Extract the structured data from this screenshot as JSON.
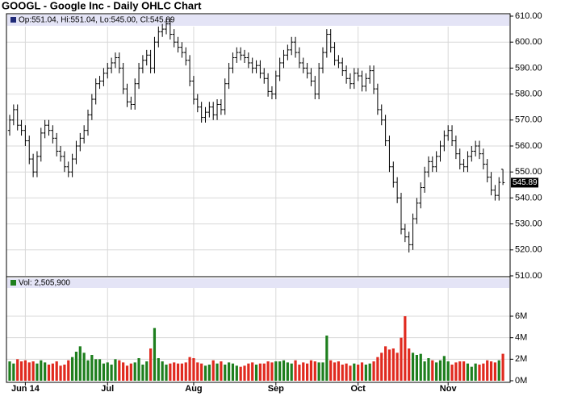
{
  "chart_data": {
    "type": "ohlc",
    "title": "GOOGL - Google Inc - Daily OHLC Chart",
    "legend_text": "Op:551.04, Hi:551.04, Lo:545.00, Cl:545.89",
    "volume_legend": "Vol: 2,505,900",
    "categories": [
      null,
      null,
      null,
      null,
      "Jun 14",
      null,
      null,
      null,
      null,
      null,
      null,
      null,
      null,
      null,
      null,
      null,
      null,
      null,
      null,
      null,
      null,
      null,
      null,
      null,
      null,
      "Jul",
      null,
      null,
      null,
      null,
      null,
      null,
      null,
      null,
      null,
      null,
      null,
      null,
      null,
      null,
      null,
      null,
      null,
      null,
      null,
      null,
      null,
      "Aug",
      null,
      null,
      null,
      null,
      null,
      null,
      null,
      null,
      null,
      null,
      null,
      null,
      null,
      null,
      null,
      null,
      null,
      null,
      null,
      null,
      "Sep",
      null,
      null,
      null,
      null,
      null,
      null,
      null,
      null,
      null,
      null,
      null,
      null,
      null,
      null,
      null,
      null,
      null,
      null,
      null,
      null,
      "Oct",
      null,
      null,
      null,
      null,
      null,
      null,
      null,
      null,
      null,
      null,
      null,
      null,
      null,
      null,
      null,
      null,
      null,
      null,
      null,
      null,
      null,
      null,
      "Nov",
      null,
      null,
      null,
      null,
      null,
      null,
      null,
      null,
      null,
      null,
      null,
      null,
      null,
      null
    ],
    "open": [
      566,
      570,
      574,
      568,
      566,
      562,
      555,
      550,
      556,
      565,
      568,
      566,
      563,
      558,
      556,
      552,
      550,
      555,
      560,
      563,
      566,
      572,
      578,
      584,
      585,
      588,
      590,
      592,
      594,
      590,
      582,
      577,
      576,
      584,
      590,
      593,
      595,
      590,
      600,
      604,
      605,
      607,
      603,
      600,
      598,
      596,
      593,
      585,
      578,
      575,
      571,
      573,
      575,
      572,
      576,
      574,
      584,
      590,
      594,
      596,
      595,
      594,
      592,
      590,
      591,
      588,
      586,
      581,
      580,
      587,
      592,
      595,
      597,
      600,
      596,
      592,
      590,
      588,
      585,
      580,
      590,
      596,
      603,
      598,
      593,
      592,
      589,
      586,
      584,
      588,
      587,
      583,
      586,
      589,
      582,
      574,
      570,
      562,
      552,
      546,
      540,
      528,
      525,
      522,
      532,
      538,
      544,
      550,
      554,
      552,
      556,
      560,
      564,
      566,
      562,
      557,
      553,
      552,
      556,
      558,
      560,
      557,
      553,
      548,
      543,
      541,
      551.04
    ],
    "high": [
      572,
      576,
      576,
      570,
      568,
      564,
      557,
      558,
      567,
      570,
      570,
      568,
      565,
      560,
      558,
      554,
      557,
      562,
      565,
      568,
      574,
      580,
      586,
      587,
      590,
      592,
      594,
      596,
      596,
      592,
      584,
      579,
      586,
      592,
      595,
      597,
      597,
      602,
      606,
      607,
      609,
      609,
      605,
      602,
      600,
      598,
      595,
      587,
      580,
      577,
      575,
      577,
      577,
      578,
      578,
      586,
      592,
      596,
      598,
      598,
      597,
      596,
      594,
      593,
      593,
      590,
      588,
      583,
      589,
      594,
      597,
      599,
      602,
      602,
      598,
      594,
      592,
      590,
      587,
      592,
      598,
      605,
      605,
      600,
      595,
      594,
      591,
      588,
      590,
      590,
      589,
      588,
      591,
      591,
      584,
      576,
      572,
      564,
      554,
      548,
      542,
      530,
      527,
      534,
      540,
      546,
      552,
      556,
      556,
      558,
      562,
      566,
      568,
      568,
      564,
      559,
      555,
      558,
      560,
      562,
      562,
      559,
      555,
      550,
      545,
      548,
      551.04
    ],
    "low": [
      564,
      568,
      566,
      564,
      560,
      553,
      548,
      548,
      554,
      563,
      564,
      561,
      556,
      554,
      550,
      548,
      548,
      553,
      558,
      561,
      564,
      570,
      576,
      582,
      583,
      586,
      588,
      590,
      588,
      580,
      575,
      574,
      574,
      582,
      588,
      591,
      588,
      588,
      598,
      602,
      603,
      601,
      598,
      596,
      594,
      591,
      583,
      576,
      573,
      569,
      569,
      571,
      570,
      570,
      572,
      572,
      582,
      588,
      592,
      593,
      592,
      590,
      588,
      588,
      586,
      584,
      579,
      578,
      578,
      585,
      590,
      593,
      595,
      594,
      590,
      588,
      586,
      583,
      578,
      578,
      588,
      594,
      596,
      591,
      590,
      587,
      584,
      582,
      582,
      585,
      581,
      581,
      584,
      580,
      572,
      568,
      560,
      550,
      544,
      538,
      526,
      523,
      519,
      520,
      530,
      536,
      542,
      548,
      550,
      550,
      554,
      558,
      562,
      560,
      555,
      551,
      550,
      550,
      554,
      556,
      555,
      551,
      546,
      541,
      539,
      539,
      545
    ],
    "close": [
      570,
      574,
      568,
      566,
      562,
      555,
      550,
      556,
      565,
      568,
      566,
      563,
      558,
      556,
      552,
      550,
      555,
      560,
      563,
      566,
      572,
      578,
      584,
      585,
      588,
      590,
      592,
      594,
      590,
      582,
      577,
      576,
      584,
      590,
      593,
      595,
      590,
      600,
      604,
      605,
      607,
      603,
      600,
      598,
      596,
      593,
      585,
      578,
      575,
      571,
      573,
      575,
      572,
      576,
      574,
      584,
      590,
      594,
      596,
      595,
      594,
      592,
      590,
      591,
      588,
      586,
      581,
      580,
      587,
      592,
      595,
      597,
      600,
      596,
      592,
      590,
      588,
      585,
      580,
      590,
      596,
      603,
      598,
      593,
      592,
      589,
      586,
      584,
      588,
      587,
      583,
      586,
      589,
      582,
      574,
      570,
      562,
      552,
      546,
      540,
      528,
      525,
      522,
      532,
      538,
      544,
      550,
      554,
      552,
      556,
      560,
      564,
      566,
      562,
      557,
      553,
      552,
      556,
      558,
      560,
      557,
      553,
      548,
      543,
      541,
      546,
      545.89
    ],
    "volume": [
      1800000,
      1600000,
      2000000,
      1800000,
      1900000,
      1700000,
      1800000,
      1600000,
      1900000,
      1700000,
      1500000,
      1600000,
      1800000,
      1400000,
      1500000,
      1900000,
      2200000,
      2700000,
      3200000,
      2600000,
      1900000,
      2400000,
      2000000,
      2000000,
      1600000,
      1700000,
      1500000,
      2000000,
      1900000,
      1700000,
      1400000,
      1600000,
      1700000,
      2100000,
      1500000,
      1800000,
      3000000,
      4900000,
      2100000,
      1800000,
      1500000,
      1600000,
      1700000,
      1600000,
      1600000,
      1700000,
      2200000,
      2100000,
      1700000,
      1600000,
      1400000,
      1500000,
      1900000,
      1600000,
      1800000,
      1500000,
      1700000,
      1600000,
      1400000,
      1300000,
      1400000,
      1600000,
      1700000,
      1500000,
      1600000,
      1600000,
      1800000,
      1700000,
      1800000,
      1800000,
      1900000,
      1700000,
      1600000,
      1900000,
      1500000,
      1700000,
      1600000,
      1900000,
      1800000,
      1700000,
      1700000,
      4200000,
      1900000,
      1700000,
      1800000,
      1500000,
      1600000,
      1400000,
      1600000,
      1500000,
      1700000,
      1500000,
      1600000,
      1800000,
      2200000,
      2600000,
      3200000,
      2900000,
      3000000,
      2600000,
      4000000,
      6000000,
      3000000,
      2600000,
      2400000,
      2500000,
      1800000,
      2100000,
      1900000,
      1700000,
      1900000,
      2300000,
      1800000,
      1500000,
      1700000,
      1800000,
      1800000,
      1600000,
      1300000,
      1600000,
      1500000,
      1600000,
      1900000,
      1800000,
      1700000,
      1900000,
      2505900
    ],
    "color": "#000000",
    "up_color": "#1e7f1e",
    "down_color": "#e02a1f",
    "ylim": [
      510,
      610
    ],
    "yticks": [
      {
        "value": 510,
        "label": "510.00"
      },
      {
        "value": 520,
        "label": "520.00"
      },
      {
        "value": 530,
        "label": "530.00"
      },
      {
        "value": 540,
        "label": "540.00"
      },
      {
        "value": 550,
        "label": "550.00"
      },
      {
        "value": 560,
        "label": "560.00"
      },
      {
        "value": 570,
        "label": "570.00"
      },
      {
        "value": 580,
        "label": "580.00"
      },
      {
        "value": 590,
        "label": "590.00"
      },
      {
        "value": 600,
        "label": "600.00"
      },
      {
        "value": 610,
        "label": "610.00"
      }
    ],
    "y2lim": [
      0,
      9600000
    ],
    "y2ticks": [
      {
        "value": 0,
        "label": "0M"
      },
      {
        "value": 2000000,
        "label": "2M"
      },
      {
        "value": 4000000,
        "label": "4M"
      },
      {
        "value": 6000000,
        "label": "6M"
      }
    ],
    "grid": true
  }
}
